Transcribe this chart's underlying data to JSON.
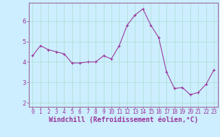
{
  "x": [
    0,
    1,
    2,
    3,
    4,
    5,
    6,
    7,
    8,
    9,
    10,
    11,
    12,
    13,
    14,
    15,
    16,
    17,
    18,
    19,
    20,
    21,
    22,
    23
  ],
  "y": [
    4.3,
    4.8,
    4.6,
    4.5,
    4.4,
    3.95,
    3.95,
    4.0,
    4.0,
    4.3,
    4.15,
    4.8,
    5.8,
    6.3,
    6.6,
    5.8,
    5.2,
    3.5,
    2.7,
    2.75,
    2.4,
    2.5,
    2.9,
    3.6
  ],
  "line_color": "#993399",
  "marker": "P",
  "marker_size": 2.5,
  "xlabel": "Windchill (Refroidissement éolien,°C)",
  "xlabel_fontsize": 7,
  "ylabel_ticks": [
    2,
    3,
    4,
    5,
    6
  ],
  "xtick_labels": [
    "0",
    "1",
    "2",
    "3",
    "4",
    "5",
    "6",
    "7",
    "8",
    "9",
    "10",
    "11",
    "12",
    "13",
    "14",
    "15",
    "16",
    "17",
    "18",
    "19",
    "20",
    "21",
    "22",
    "23"
  ],
  "xlim": [
    -0.5,
    23.5
  ],
  "ylim": [
    1.8,
    6.9
  ],
  "grid_color": "#aaddcc",
  "bg_color": "#cceeff",
  "spine_color": "#996699",
  "tick_color": "#993399",
  "label_color": "#993399",
  "xtick_fontsize": 5.5,
  "ytick_fontsize": 6.5
}
